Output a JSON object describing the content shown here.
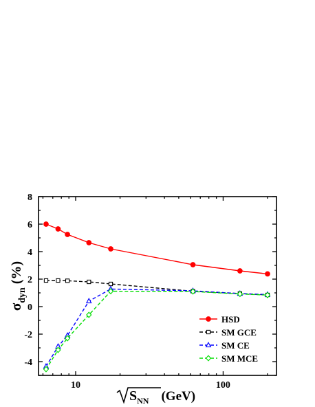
{
  "chart_data": {
    "type": "line",
    "xscale": "log",
    "xlim": [
      5.6,
      230
    ],
    "ylim": [
      -5,
      8
    ],
    "x_ticks": [
      10,
      100
    ],
    "x_tick_labels": [
      "10",
      "100"
    ],
    "y_ticks": [
      -4,
      -2,
      0,
      2,
      4,
      6,
      8
    ],
    "y_tick_labels": [
      "-4",
      "-2",
      "0",
      "2",
      "4",
      "6",
      "8"
    ],
    "xlabel": {
      "radical": "S",
      "subscript": "NN",
      "unit": "(GeV)"
    },
    "ylabel": {
      "symbol": "σ",
      "subscript": "dyn",
      "unit": "(%)"
    },
    "legend_position": "lower-right",
    "x": [
      6.3,
      7.6,
      8.8,
      12.3,
      17.3,
      62.4,
      130,
      200
    ],
    "series": [
      {
        "name": "HSD",
        "color": "#ff0000",
        "dash": "solid",
        "marker": "filled-circle",
        "values": [
          6.0,
          5.65,
          5.25,
          4.65,
          4.2,
          3.05,
          2.6,
          2.38
        ]
      },
      {
        "name": "SM GCE",
        "color": "#000000",
        "dash": "dashed",
        "marker": "open-square",
        "values": [
          1.9,
          1.9,
          1.88,
          1.8,
          1.65,
          1.12,
          0.95,
          0.85
        ]
      },
      {
        "name": "SM CE",
        "color": "#0000ff",
        "dash": "dashed",
        "marker": "open-triangle",
        "values": [
          -4.35,
          -2.9,
          -2.1,
          0.4,
          1.28,
          1.15,
          0.95,
          0.88
        ]
      },
      {
        "name": "SM MCE",
        "color": "#00dd00",
        "dash": "dashed",
        "marker": "open-diamond",
        "values": [
          -4.55,
          -3.15,
          -2.3,
          -0.6,
          1.12,
          1.1,
          0.92,
          0.84
        ]
      }
    ]
  }
}
